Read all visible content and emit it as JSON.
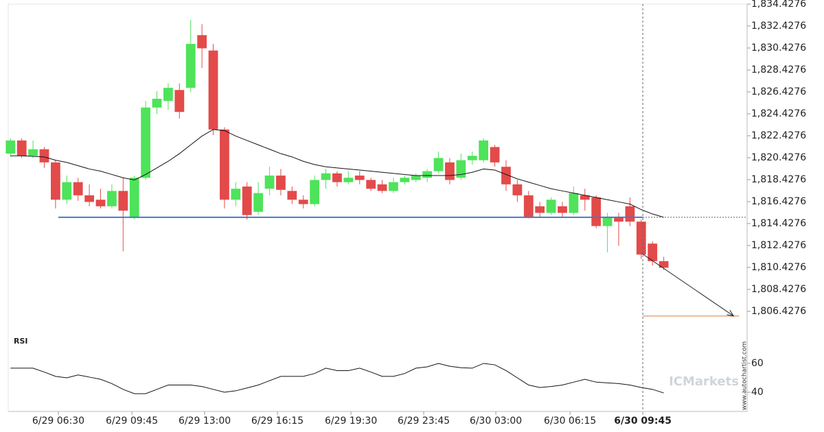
{
  "chart_data": {
    "type": "candlestick",
    "colors": {
      "up": "#4ee35a",
      "down": "#e34a4a",
      "ma": "#111111",
      "support": "#4a78c2",
      "target": "#d97a3a",
      "rsi": "#111111"
    },
    "xlim": [
      -0.2,
      65.4
    ],
    "xticks": [
      {
        "value": 4.25,
        "label": "6/29 06:30"
      },
      {
        "value": 10.78,
        "label": "6/29 09:45"
      },
      {
        "value": 17.24,
        "label": "6/29 13:00"
      },
      {
        "value": 23.7,
        "label": "6/29 16:15"
      },
      {
        "value": 30.23,
        "label": "6/29 19:30"
      },
      {
        "value": 36.69,
        "label": "6/29 23:45"
      },
      {
        "value": 43.09,
        "label": "6/30 03:00"
      },
      {
        "value": 49.68,
        "label": "6/30 06:15"
      },
      {
        "value": 56.14,
        "label": "6/30 09:45"
      }
    ],
    "ylim": [
      1804.1776,
      1834.4276
    ],
    "yticks": [
      {
        "value": 1834.4276,
        "label": "1,834.4276"
      },
      {
        "value": 1832.4276,
        "label": "1,832.4276"
      },
      {
        "value": 1830.4276,
        "label": "1,830.4276"
      },
      {
        "value": 1828.4276,
        "label": "1,828.4276"
      },
      {
        "value": 1826.4276,
        "label": "1,826.4276"
      },
      {
        "value": 1824.4276,
        "label": "1,824.4276"
      },
      {
        "value": 1822.4276,
        "label": "1,822.4276"
      },
      {
        "value": 1820.4276,
        "label": "1,820.4276"
      },
      {
        "value": 1818.4276,
        "label": "1,818.4276"
      },
      {
        "value": 1816.4276,
        "label": "1,816.4276"
      },
      {
        "value": 1814.4276,
        "label": "1,814.4276"
      },
      {
        "value": 1812.4276,
        "label": "1,812.4276"
      },
      {
        "value": 1810.4276,
        "label": "1,810.4276"
      },
      {
        "value": 1808.4276,
        "label": "1,808.4276"
      },
      {
        "value": 1806.4276,
        "label": "1,806.4276"
      }
    ],
    "open": [
      1820.8,
      1822,
      1820.6,
      1821.2,
      1820,
      1816.6,
      1818.2,
      1817,
      1816.6,
      1816,
      1817.4,
      1815,
      1818.6,
      1825,
      1825.6,
      1826.6,
      1826.8,
      1831.6,
      1830.2,
      1823,
      1816.6,
      1817.8,
      1815.5,
      1817.6,
      1818.8,
      1817.4,
      1816.6,
      1816.2,
      1818.4,
      1819,
      1818.2,
      1818.8,
      1818.4,
      1818,
      1817.4,
      1818.2,
      1818.4,
      1818.6,
      1819.2,
      1820,
      1818.6,
      1820.2,
      1820.2,
      1821.4,
      1819.6,
      1818,
      1817,
      1816,
      1815.4,
      1816,
      1815.4,
      1817,
      1816.8,
      1814.2,
      1815,
      1816,
      1814.6,
      1812.6,
      1811
    ],
    "high": [
      1822.2,
      1822.2,
      1822,
      1821.4,
      1820.2,
      1818.8,
      1818.6,
      1818,
      1817.6,
      1818,
      1818.6,
      1818.8,
      1825.6,
      1826.5,
      1827.2,
      1827.2,
      1833,
      1832.6,
      1830.8,
      1823.2,
      1818.2,
      1818.2,
      1818.2,
      1819.6,
      1819.4,
      1817.8,
      1817,
      1818.8,
      1819.4,
      1819.2,
      1819.2,
      1819.2,
      1818.6,
      1818.4,
      1818.6,
      1818.8,
      1819,
      1819.4,
      1821,
      1820.4,
      1820.8,
      1821,
      1822.2,
      1821.6,
      1820.2,
      1818.4,
      1817.4,
      1816.4,
      1816.8,
      1816.4,
      1817.8,
      1817.6,
      1817,
      1815.4,
      1815.4,
      1816.8,
      1814.8,
      1812.8,
      1811.4
    ],
    "low": [
      1820.5,
      1820.4,
      1820.4,
      1819.5,
      1815.8,
      1816.2,
      1816.5,
      1816,
      1815.8,
      1815.8,
      1811.9,
      1814.8,
      1818.4,
      1824.4,
      1824.8,
      1824,
      1826.4,
      1828.6,
      1822.5,
      1815.8,
      1816,
      1814.8,
      1815.2,
      1817,
      1817,
      1816.2,
      1815.8,
      1816,
      1817.6,
      1817.8,
      1818,
      1818,
      1817.4,
      1817.2,
      1817.2,
      1818,
      1818.2,
      1818.2,
      1819,
      1818,
      1818.4,
      1819.8,
      1820,
      1819.6,
      1817.4,
      1816.4,
      1814.9,
      1815,
      1815.2,
      1815,
      1815.2,
      1815.6,
      1814,
      1811.8,
      1812.4,
      1814.2,
      1811.2,
      1810.6,
      1810.2
    ],
    "close": [
      1822,
      1820.6,
      1821.2,
      1820,
      1816.6,
      1818.2,
      1817,
      1816.4,
      1816,
      1817.4,
      1815.6,
      1818.6,
      1825,
      1825.8,
      1826.8,
      1824.6,
      1830.8,
      1830.4,
      1823,
      1816.6,
      1817.6,
      1815.2,
      1817.2,
      1818.8,
      1817.5,
      1816.6,
      1816.2,
      1818.4,
      1819,
      1818.2,
      1818.6,
      1818.4,
      1817.6,
      1817.4,
      1818.2,
      1818.6,
      1818.8,
      1819.2,
      1820.4,
      1818.4,
      1820.2,
      1820.6,
      1822,
      1820,
      1818,
      1817,
      1815,
      1815.4,
      1816.6,
      1815.4,
      1817.2,
      1816.6,
      1814.2,
      1815,
      1814.6,
      1814.6,
      1811.6,
      1811,
      1810.4
    ],
    "ma": [
      1820.6,
      1820.6,
      1820.55,
      1820.5,
      1820.2,
      1820,
      1819.7,
      1819.4,
      1819.2,
      1818.9,
      1818.6,
      1818.4,
      1818.9,
      1819.5,
      1820.1,
      1820.8,
      1821.6,
      1822.4,
      1823,
      1822.9,
      1822.4,
      1822,
      1821.6,
      1821.2,
      1820.8,
      1820.5,
      1820.1,
      1819.8,
      1819.6,
      1819.5,
      1819.4,
      1819.3,
      1819.2,
      1819.1,
      1819,
      1818.9,
      1818.8,
      1818.8,
      1818.8,
      1818.8,
      1818.9,
      1819.1,
      1819.4,
      1819.3,
      1818.9,
      1818.5,
      1818.2,
      1817.9,
      1817.6,
      1817.4,
      1817.2,
      1817,
      1816.8,
      1816.6,
      1816.4,
      1816.2,
      1815.7,
      1815.3,
      1815
    ],
    "support": {
      "value": 1815,
      "x": [
        4.25,
        56.14,
        65.4
      ]
    },
    "forecast": {
      "x": [
        56.1,
        64.2
      ],
      "values": [
        1811.67,
        1806
      ]
    },
    "target": {
      "value": 1806,
      "x": [
        56.14,
        64.7
      ]
    },
    "current_x": 56.14,
    "rsi": {
      "title": "RSI",
      "ylim": [
        26.7,
        79
      ],
      "yticks": [
        40,
        60
      ],
      "values": [
        56.7,
        56.7,
        56.7,
        54,
        51,
        50,
        52,
        50.5,
        49,
        46,
        42,
        39,
        39,
        42,
        45,
        45,
        45,
        44,
        42,
        40,
        41,
        43,
        45,
        48,
        51,
        51,
        51,
        53,
        56.7,
        55,
        55,
        56.7,
        54,
        51,
        51,
        53,
        56.7,
        57.6,
        60,
        58,
        57,
        56.7,
        60,
        59,
        55,
        50,
        45,
        43.3,
        44,
        45,
        47,
        49,
        47,
        46.5,
        46,
        45,
        43.3,
        42,
        39.5
      ]
    },
    "watermark": "ICMarkets",
    "source": "www.autochartist.com"
  }
}
